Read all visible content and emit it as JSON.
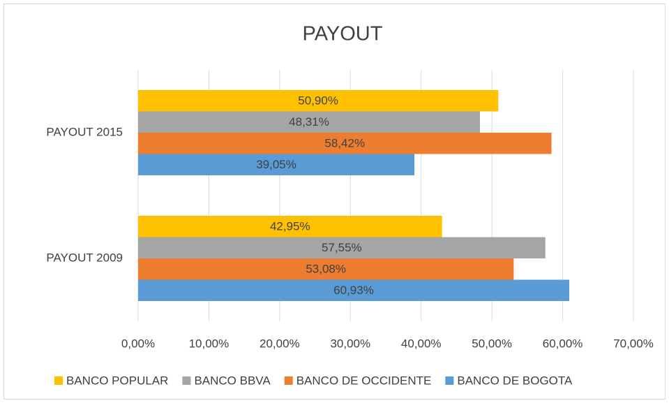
{
  "chart_data": {
    "type": "bar",
    "orientation": "horizontal",
    "title": "PAYOUT",
    "categories": [
      "PAYOUT  2009",
      "PAYOUT  2015"
    ],
    "series": [
      {
        "name": "BANCO POPULAR",
        "color": "#ffc000",
        "values": [
          42.95,
          50.9
        ],
        "value_labels": [
          "42,95%",
          "50,90%"
        ]
      },
      {
        "name": "BANCO BBVA",
        "color": "#a5a5a5",
        "values": [
          57.55,
          48.31
        ],
        "value_labels": [
          "57,55%",
          "48,31%"
        ]
      },
      {
        "name": "BANCO DE OCCIDENTE",
        "color": "#ed7d31",
        "values": [
          53.08,
          58.42
        ],
        "value_labels": [
          "53,08%",
          "58,42%"
        ]
      },
      {
        "name": "BANCO DE BOGOTA",
        "color": "#5b9bd5",
        "values": [
          60.93,
          39.05
        ],
        "value_labels": [
          "60,93%",
          "39,05%"
        ]
      }
    ],
    "xlim": [
      0,
      70
    ],
    "xticks": [
      {
        "value": 0,
        "label": "0,00%"
      },
      {
        "value": 10,
        "label": "10,00%"
      },
      {
        "value": 20,
        "label": "20,00%"
      },
      {
        "value": 30,
        "label": "30,00%"
      },
      {
        "value": 40,
        "label": "40,00%"
      },
      {
        "value": 50,
        "label": "50,00%"
      },
      {
        "value": 60,
        "label": "60,00%"
      },
      {
        "value": 70,
        "label": "70,00%"
      }
    ],
    "grid": true,
    "legend": "bottom"
  }
}
